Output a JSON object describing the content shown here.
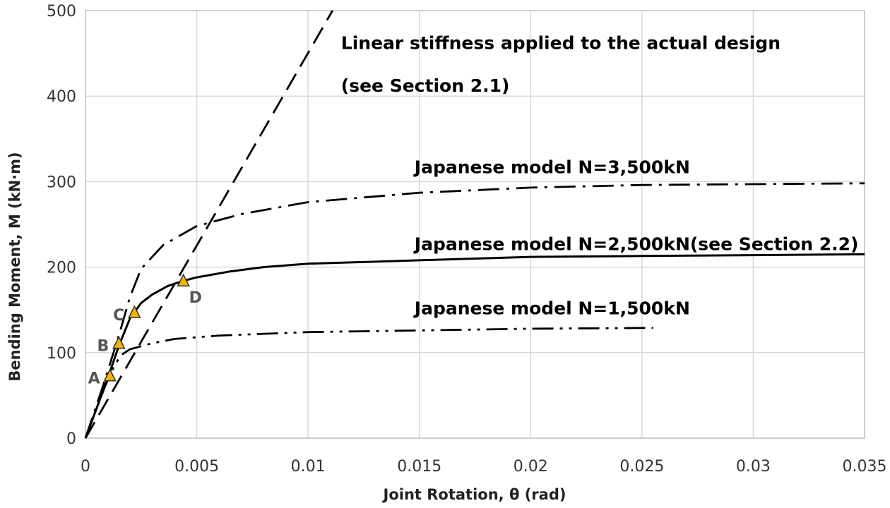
{
  "chart_data": {
    "type": "line",
    "title": "",
    "xlabel": "Joint Rotation, θ (rad)",
    "ylabel": "Bending Moment, M (kN·m)",
    "xlim": [
      0,
      0.035
    ],
    "ylim": [
      0,
      500
    ],
    "xticks": [
      0,
      0.005,
      0.01,
      0.015,
      0.02,
      0.025,
      0.03,
      0.035
    ],
    "xtick_labels": [
      "0",
      "0.005",
      "0.01",
      "0.015",
      "0.02",
      "0.025",
      "0.03",
      "0.035"
    ],
    "yticks": [
      0,
      100,
      200,
      300,
      400,
      500
    ],
    "ytick_labels": [
      "0",
      "100",
      "200",
      "300",
      "400",
      "500"
    ],
    "grid": true,
    "legend": "none",
    "series": [
      {
        "key": "linear",
        "line_style": "dash",
        "color": "#000000",
        "points": [
          [
            0,
            0
          ],
          [
            0.0111,
            500
          ]
        ]
      },
      {
        "key": "n3500",
        "line_style": "dash-dot",
        "color": "#000000",
        "points": [
          [
            0,
            0
          ],
          [
            0.0008,
            62
          ],
          [
            0.0015,
            120
          ],
          [
            0.002,
            165
          ],
          [
            0.0025,
            198
          ],
          [
            0.0035,
            226
          ],
          [
            0.005,
            248
          ],
          [
            0.007,
            262
          ],
          [
            0.01,
            276
          ],
          [
            0.015,
            287
          ],
          [
            0.02,
            293
          ],
          [
            0.025,
            296
          ],
          [
            0.03,
            297
          ],
          [
            0.035,
            298
          ]
        ]
      },
      {
        "key": "n2500",
        "line_style": "solid",
        "color": "#000000",
        "points": [
          [
            0,
            0
          ],
          [
            0.0005,
            35
          ],
          [
            0.001,
            70
          ],
          [
            0.0015,
            108
          ],
          [
            0.002,
            140
          ],
          [
            0.0025,
            158
          ],
          [
            0.003,
            168
          ],
          [
            0.0037,
            178
          ],
          [
            0.0044,
            184
          ],
          [
            0.005,
            188
          ],
          [
            0.0065,
            195
          ],
          [
            0.008,
            200
          ],
          [
            0.01,
            204
          ],
          [
            0.015,
            208
          ],
          [
            0.02,
            212
          ],
          [
            0.025,
            213
          ],
          [
            0.03,
            214
          ],
          [
            0.035,
            215
          ]
        ]
      },
      {
        "key": "n1500",
        "line_style": "dash-dot-dot",
        "color": "#000000",
        "points": [
          [
            0,
            0
          ],
          [
            0.0005,
            35
          ],
          [
            0.0009,
            62
          ],
          [
            0.0013,
            85
          ],
          [
            0.0016,
            97
          ],
          [
            0.002,
            104
          ],
          [
            0.003,
            111
          ],
          [
            0.004,
            116
          ],
          [
            0.006,
            120
          ],
          [
            0.01,
            124
          ],
          [
            0.015,
            126
          ],
          [
            0.02,
            128
          ],
          [
            0.0255,
            129
          ]
        ]
      }
    ],
    "annotations": [
      {
        "text": "Linear stiffness applied to the actual design",
        "x": 0.0111,
        "y": 455
      },
      {
        "text": "(see Section 2.1)",
        "x": 0.0111,
        "y": 405
      },
      {
        "text": "Japanese model N=3,500kN",
        "x": 0.0144,
        "y": 310
      },
      {
        "text": "Japanese model N=2,500kN(see Section 2.2)",
        "x": 0.0144,
        "y": 220
      },
      {
        "text": "Japanese model N=1,500kN",
        "x": 0.0144,
        "y": 145
      }
    ],
    "markers": [
      {
        "label": "A",
        "x": 0.0011,
        "y": 72,
        "marker_color": "#f0b400",
        "label_side": "left"
      },
      {
        "label": "B",
        "x": 0.0015,
        "y": 110,
        "marker_color": "#f0b400",
        "label_side": "left"
      },
      {
        "label": "C",
        "x": 0.0022,
        "y": 146,
        "marker_color": "#f0b400",
        "label_side": "left"
      },
      {
        "label": "D",
        "x": 0.0044,
        "y": 183,
        "marker_color": "#f0b400",
        "label_side": "below-right"
      }
    ]
  }
}
